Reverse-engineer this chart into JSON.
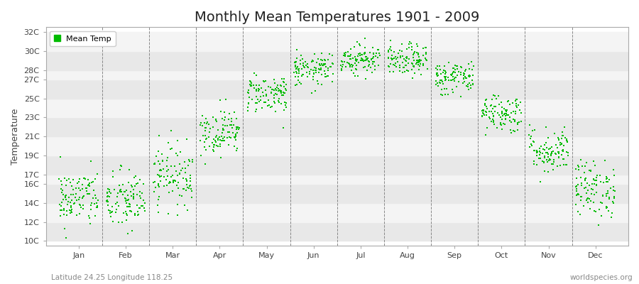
{
  "title": "Monthly Mean Temperatures 1901 - 2009",
  "ylabel": "Temperature",
  "xlabel_labels": [
    "Jan",
    "Feb",
    "Mar",
    "Apr",
    "May",
    "Jun",
    "Jul",
    "Aug",
    "Sep",
    "Oct",
    "Nov",
    "Dec"
  ],
  "subtitle": "Latitude 24.25 Longitude 118.25",
  "watermark": "worldspecies.org",
  "legend_label": "Mean Temp",
  "dot_color": "#00bb00",
  "background_color": "#ffffff",
  "plot_bg_color": "#ffffff",
  "band_color_a": "#e8e8e8",
  "band_color_b": "#f4f4f4",
  "ytick_labels": [
    "10C",
    "12C",
    "14C",
    "16C",
    "17C",
    "19C",
    "21C",
    "23C",
    "25C",
    "27C",
    "28C",
    "30C",
    "32C"
  ],
  "ytick_values": [
    10,
    12,
    14,
    16,
    17,
    19,
    21,
    23,
    25,
    27,
    28,
    30,
    32
  ],
  "ylim": [
    9.5,
    32.5
  ],
  "monthly_means": [
    14.5,
    14.2,
    17.0,
    21.5,
    25.5,
    28.0,
    29.2,
    29.0,
    27.2,
    23.5,
    19.5,
    15.5
  ],
  "monthly_stds": [
    1.5,
    1.6,
    1.6,
    1.2,
    1.0,
    0.8,
    0.8,
    0.8,
    0.9,
    1.0,
    1.2,
    1.5
  ],
  "n_years": 109,
  "title_fontsize": 14,
  "axis_fontsize": 9,
  "tick_fontsize": 8,
  "legend_fontsize": 8,
  "dot_size": 4
}
